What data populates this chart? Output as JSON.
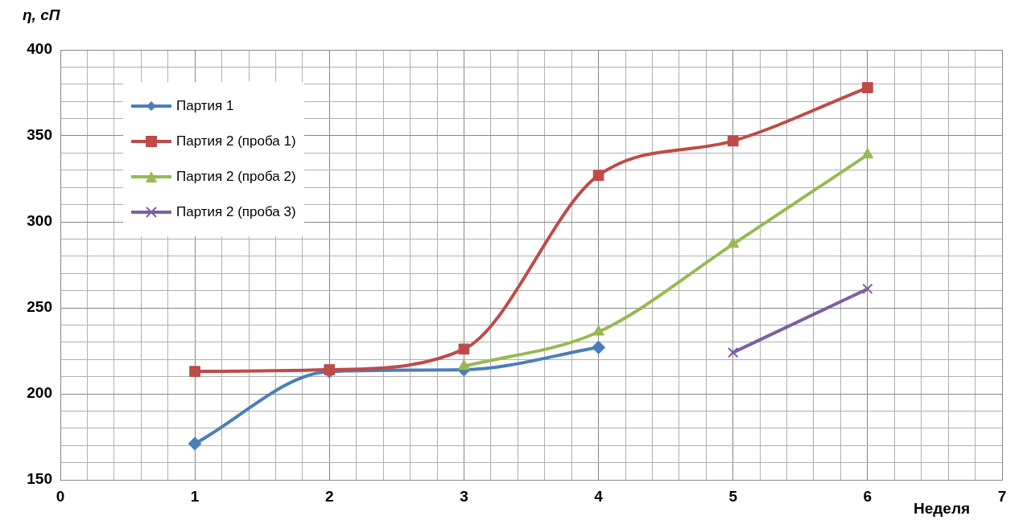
{
  "chart_data": {
    "type": "line",
    "xlabel": "Неделя",
    "ylabel": "η, сП",
    "series": [
      {
        "name": "Партия 1",
        "color": "#4a7ebb",
        "marker": "diamond",
        "x": [
          1,
          2,
          3,
          4
        ],
        "values": [
          171,
          213,
          214,
          227
        ]
      },
      {
        "name": "Партия 2 (проба 1)",
        "color": "#be4b48",
        "marker": "square",
        "x": [
          1,
          2,
          3,
          4,
          5,
          6
        ],
        "values": [
          213,
          214,
          226,
          327,
          347,
          378
        ]
      },
      {
        "name": "Партия 2 (проба 2)",
        "color": "#98b954",
        "marker": "triangle",
        "x": [
          3,
          4,
          5,
          6
        ],
        "values": [
          216,
          236,
          287,
          339
        ]
      },
      {
        "name": "Партия 2 (проба 3)",
        "color": "#7d60a0",
        "marker": "cross",
        "x": [
          5,
          6
        ],
        "values": [
          224,
          261
        ]
      }
    ],
    "xlim": [
      0,
      7
    ],
    "xticks": [
      0,
      {
        "value": 0.2,
        "label": null
      },
      {
        "value": 0.4,
        "label": null
      },
      {
        "value": 0.6,
        "label": null
      },
      {
        "value": 0.8,
        "label": null
      },
      1,
      {
        "value": 1.2,
        "label": null
      },
      {
        "value": 1.4,
        "label": null
      },
      {
        "value": 1.6,
        "label": null
      },
      {
        "value": 1.8,
        "label": null
      },
      2,
      {
        "value": 2.2,
        "label": null
      },
      {
        "value": 2.4,
        "label": null
      },
      {
        "value": 2.6,
        "label": null
      },
      {
        "value": 2.8,
        "label": null
      },
      3,
      {
        "value": 3.2,
        "label": null
      },
      {
        "value": 3.4,
        "label": null
      },
      {
        "value": 3.6,
        "label": null
      },
      {
        "value": 3.8,
        "label": null
      },
      4,
      {
        "value": 4.2,
        "label": null
      },
      {
        "value": 4.4,
        "label": null
      },
      {
        "value": 4.6,
        "label": null
      },
      {
        "value": 4.8,
        "label": null
      },
      5,
      {
        "value": 5.2,
        "label": null
      },
      {
        "value": 5.4,
        "label": null
      },
      {
        "value": 5.6,
        "label": null
      },
      {
        "value": 5.8,
        "label": null
      },
      6,
      {
        "value": 6.2,
        "label": null
      },
      {
        "value": 6.4,
        "label": null
      },
      {
        "value": 6.6,
        "label": null
      },
      {
        "value": 6.8,
        "label": null
      },
      7
    ],
    "ylim": [
      150,
      400
    ],
    "yticks": [
      150,
      {
        "value": 160,
        "label": null
      },
      {
        "value": 170,
        "label": null
      },
      {
        "value": 180,
        "label": null
      },
      {
        "value": 190,
        "label": null
      },
      200,
      {
        "value": 210,
        "label": null
      },
      {
        "value": 220,
        "label": null
      },
      {
        "value": 230,
        "label": null
      },
      {
        "value": 240,
        "label": null
      },
      250,
      {
        "value": 260,
        "label": null
      },
      {
        "value": 270,
        "label": null
      },
      {
        "value": 280,
        "label": null
      },
      {
        "value": 290,
        "label": null
      },
      300,
      {
        "value": 310,
        "label": null
      },
      {
        "value": 320,
        "label": null
      },
      {
        "value": 330,
        "label": null
      },
      {
        "value": 340,
        "label": null
      },
      350,
      {
        "value": 360,
        "label": null
      },
      {
        "value": 370,
        "label": null
      },
      {
        "value": 380,
        "label": null
      },
      {
        "value": 390,
        "label": null
      },
      400
    ],
    "grid": true,
    "legend": "top left",
    "line_style": "solid"
  }
}
